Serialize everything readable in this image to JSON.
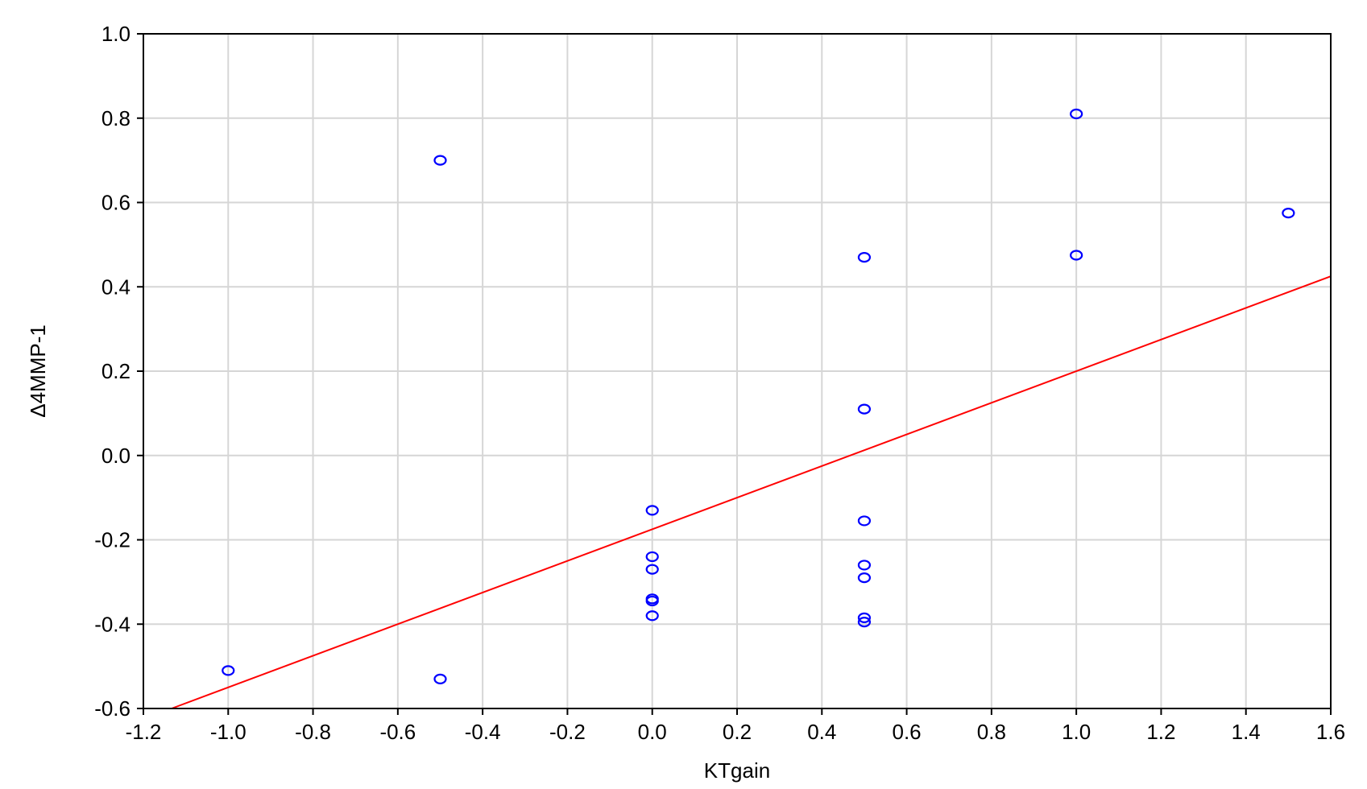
{
  "chart_data": {
    "type": "scatter",
    "title": "",
    "xlabel": "KTgain",
    "ylabel": "Δ4MMP-1",
    "xlim": [
      -1.2,
      1.6
    ],
    "ylim": [
      -0.6,
      1.0
    ],
    "xticks": [
      "-1.2",
      "-1.0",
      "-0.8",
      "-0.6",
      "-0.4",
      "-0.2",
      "0.0",
      "0.2",
      "0.4",
      "0.6",
      "0.8",
      "1.0",
      "1.2",
      "1.4",
      "1.6"
    ],
    "xtick_values": [
      -1.2,
      -1.0,
      -0.8,
      -0.6,
      -0.4,
      -0.2,
      0.0,
      0.2,
      0.4,
      0.6,
      0.8,
      1.0,
      1.2,
      1.4,
      1.6
    ],
    "yticks": [
      "1.0",
      "0.8",
      "0.6",
      "0.4",
      "0.2",
      "0.0",
      "-0.2",
      "-0.4",
      "-0.6"
    ],
    "ytick_values": [
      1.0,
      0.8,
      0.6,
      0.4,
      0.2,
      0.0,
      -0.2,
      -0.4,
      -0.6
    ],
    "grid": true,
    "point_color": "#0000ff",
    "line_color": "#ff0000",
    "points": [
      {
        "x": -1.0,
        "y": -0.51
      },
      {
        "x": -0.5,
        "y": 0.7
      },
      {
        "x": -0.5,
        "y": -0.53
      },
      {
        "x": 0.0,
        "y": -0.13
      },
      {
        "x": 0.0,
        "y": -0.24
      },
      {
        "x": 0.0,
        "y": -0.27
      },
      {
        "x": 0.0,
        "y": -0.34
      },
      {
        "x": 0.0,
        "y": -0.345
      },
      {
        "x": 0.0,
        "y": -0.38
      },
      {
        "x": 0.5,
        "y": 0.47
      },
      {
        "x": 0.5,
        "y": 0.11
      },
      {
        "x": 0.5,
        "y": -0.155
      },
      {
        "x": 0.5,
        "y": -0.26
      },
      {
        "x": 0.5,
        "y": -0.29
      },
      {
        "x": 0.5,
        "y": -0.385
      },
      {
        "x": 0.5,
        "y": -0.395
      },
      {
        "x": 1.0,
        "y": 0.81
      },
      {
        "x": 1.0,
        "y": 0.475
      },
      {
        "x": 1.5,
        "y": 0.575
      }
    ],
    "regression_line": {
      "intercept": -0.175,
      "slope": 0.375
    }
  }
}
